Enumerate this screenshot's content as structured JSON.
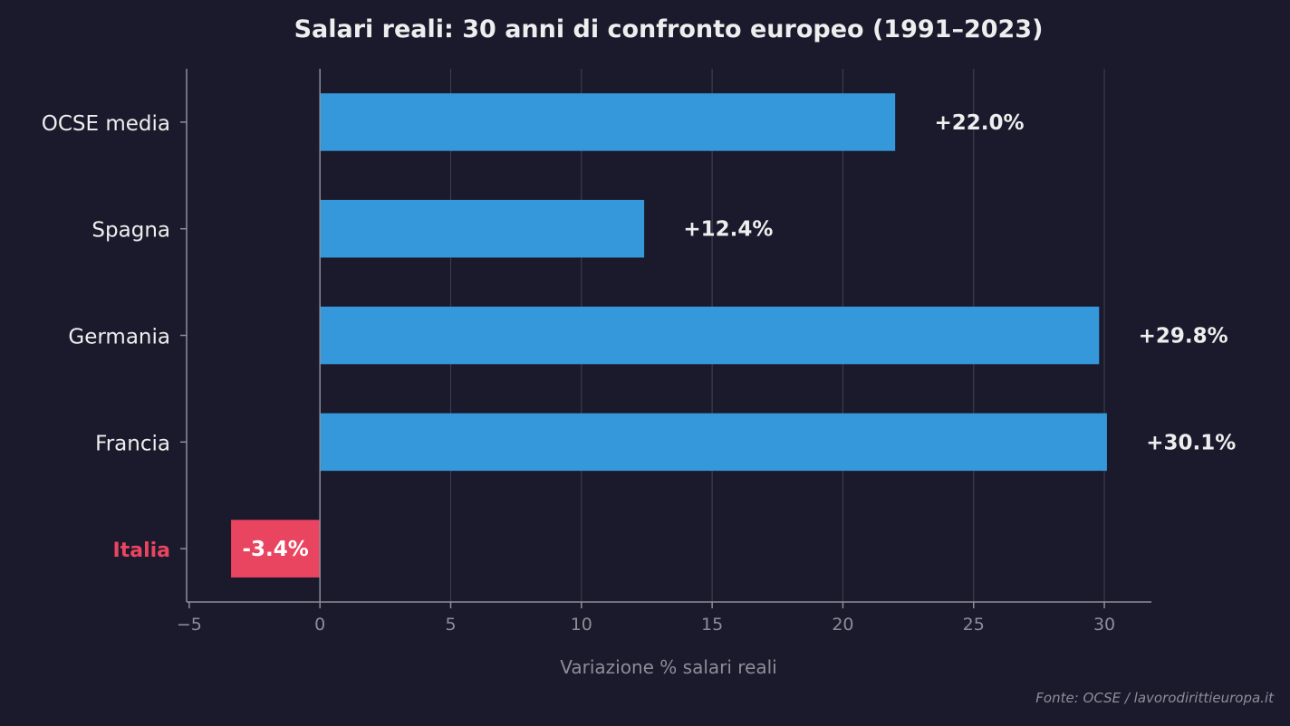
{
  "chart_data": {
    "type": "bar",
    "orientation": "horizontal",
    "title": "Salari reali: 30 anni di confronto europeo (1991–2023)",
    "xlabel": "Variazione % salari reali",
    "ylabel": "",
    "categories": [
      "OCSE media",
      "Spagna",
      "Germania",
      "Francia",
      "Italia"
    ],
    "values": [
      22.0,
      12.4,
      29.8,
      30.1,
      -3.4
    ],
    "data_labels": [
      "+22.0%",
      "+12.4%",
      "+29.8%",
      "+30.1%",
      "-3.4%"
    ],
    "xticks": [
      -5,
      0,
      5,
      10,
      15,
      20,
      25,
      30
    ],
    "xtick_labels": [
      "−5",
      "0",
      "5",
      "10",
      "15",
      "20",
      "25",
      "30"
    ],
    "xlim": [
      -5.1,
      31.8
    ],
    "grid": "vertical",
    "highlight_category": "Italia",
    "source": "Fonte: OCSE / lavorodirittieuropa.it",
    "colors": {
      "background": "#1b1a2d",
      "positive": "#3498db",
      "negative": "#e94560",
      "text": "#eeeeee",
      "muted": "#8a8f98",
      "grid": "#3a3b4e"
    }
  }
}
